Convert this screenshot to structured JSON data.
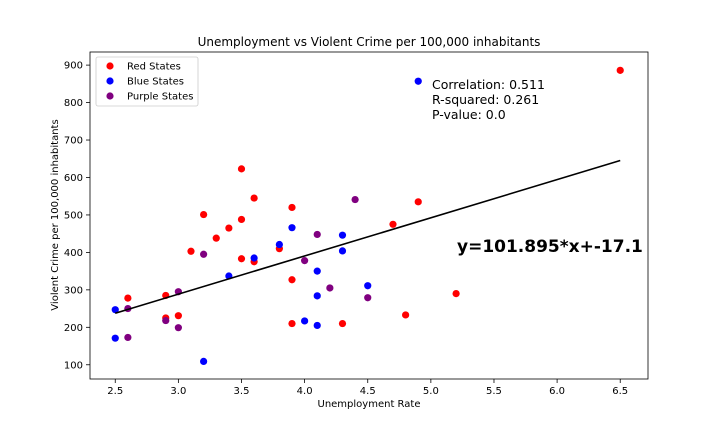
{
  "chart_data": {
    "type": "scatter",
    "title": "Unemployment vs Violent Crime per 100,000 inhabitants",
    "xlabel": "Unemployment Rate",
    "ylabel": "Violent Crime per 100,000 inhabitants",
    "xlim": [
      2.3,
      6.72
    ],
    "ylim": [
      62,
      935
    ],
    "xticks": [
      "2.5",
      "3.0",
      "3.5",
      "4.0",
      "4.5",
      "5.0",
      "5.5",
      "6.0",
      "6.5"
    ],
    "yticks": [
      "100",
      "200",
      "300",
      "400",
      "500",
      "600",
      "700",
      "800",
      "900"
    ],
    "legend_position": "upper-left",
    "series": [
      {
        "name": "Red States",
        "color": "#ff0000",
        "points": [
          [
            2.6,
            278
          ],
          [
            2.9,
            285
          ],
          [
            2.9,
            225
          ],
          [
            3.0,
            231
          ],
          [
            3.1,
            403
          ],
          [
            3.2,
            501
          ],
          [
            3.3,
            438
          ],
          [
            3.4,
            465
          ],
          [
            3.5,
            623
          ],
          [
            3.5,
            488
          ],
          [
            3.5,
            383
          ],
          [
            3.6,
            545
          ],
          [
            3.6,
            375
          ],
          [
            3.8,
            410
          ],
          [
            3.9,
            520
          ],
          [
            3.9,
            327
          ],
          [
            3.9,
            210
          ],
          [
            4.3,
            210
          ],
          [
            4.7,
            475
          ],
          [
            4.8,
            233
          ],
          [
            4.9,
            535
          ],
          [
            5.2,
            290
          ],
          [
            6.5,
            886
          ]
        ]
      },
      {
        "name": "Blue States",
        "color": "#0000ff",
        "points": [
          [
            2.5,
            247
          ],
          [
            2.5,
            171
          ],
          [
            3.2,
            109
          ],
          [
            3.4,
            337
          ],
          [
            3.6,
            385
          ],
          [
            3.8,
            421
          ],
          [
            3.9,
            466
          ],
          [
            4.0,
            217
          ],
          [
            4.1,
            350
          ],
          [
            4.1,
            284
          ],
          [
            4.1,
            205
          ],
          [
            4.3,
            446
          ],
          [
            4.3,
            404
          ],
          [
            4.5,
            311
          ],
          [
            4.9,
            857
          ]
        ]
      },
      {
        "name": "Purple States",
        "color": "#800080",
        "points": [
          [
            2.6,
            250
          ],
          [
            2.6,
            173
          ],
          [
            2.9,
            218
          ],
          [
            3.0,
            295
          ],
          [
            3.0,
            199
          ],
          [
            3.2,
            395
          ],
          [
            4.0,
            378
          ],
          [
            4.1,
            448
          ],
          [
            4.2,
            305
          ],
          [
            4.4,
            541
          ],
          [
            4.5,
            279
          ]
        ]
      }
    ],
    "regression": {
      "slope": 101.895,
      "intercept": -17.1,
      "x_range": [
        2.5,
        6.5
      ],
      "color": "#000000"
    },
    "annotations": {
      "correlation": "Correlation: 0.511",
      "r_squared": "R-squared: 0.261",
      "p_value": "P-value: 0.0",
      "equation": "y=101.895*x+-17.1"
    }
  }
}
